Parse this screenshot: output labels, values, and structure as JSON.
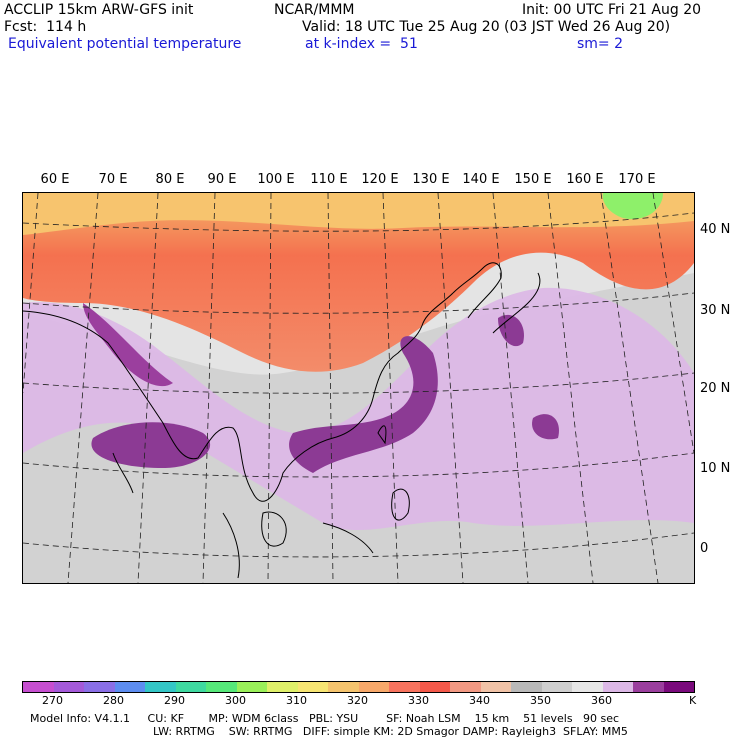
{
  "header": {
    "line1_left": "ACCLIP 15km ARW-GFS init",
    "line1_mid": "NCAR/MMM",
    "line1_right": "Init: 00 UTC Fri 21 Aug 20",
    "line2_left": "Fcst:  114 h",
    "line2_right": "Valid: 18 UTC Tue 25 Aug 20 (03 JST Wed 26 Aug 20)",
    "line3_left": "Equivalent potential temperature",
    "line3_mid": "at k-index =  51",
    "line3_right": "sm= 2"
  },
  "map": {
    "lon_labels": [
      "60 E",
      "70 E",
      "80 E",
      "90 E",
      "100 E",
      "110 E",
      "120 E",
      "130 E",
      "140 E",
      "150 E",
      "160 E",
      "170 E"
    ],
    "lat_labels": [
      "40 N",
      "30 N",
      "20 N",
      "10 N",
      "0"
    ]
  },
  "colorbar": {
    "colors": [
      "#c64fd0",
      "#a45ad9",
      "#8a6fe6",
      "#5d8df0",
      "#34c6c6",
      "#3fd9a0",
      "#56e87a",
      "#9af05a",
      "#dff06a",
      "#f7e573",
      "#f5c46e",
      "#f7a86a",
      "#f7735e",
      "#f4594a",
      "#f29983",
      "#f1c3a7",
      "#b9b9b9",
      "#cfcfcf",
      "#e6e6e6",
      "#dcb8e6",
      "#9b3f9e",
      "#7a0a7c"
    ],
    "tick_labels": [
      "270",
      "280",
      "290",
      "300",
      "310",
      "320",
      "330",
      "340",
      "350",
      "360"
    ],
    "unit": "K"
  },
  "footer": {
    "line1": "Model Info: V4.1.1     CU: KF       MP: WDM 6class   PBL: YSU        SF: Noah LSM    15 km    51 levels   90 sec",
    "line2": "LW: RRTMG    SW: RRTMG   DIFF: simple KM: 2D Smagor DAMP: Rayleigh3  SFLAY: MM5"
  }
}
